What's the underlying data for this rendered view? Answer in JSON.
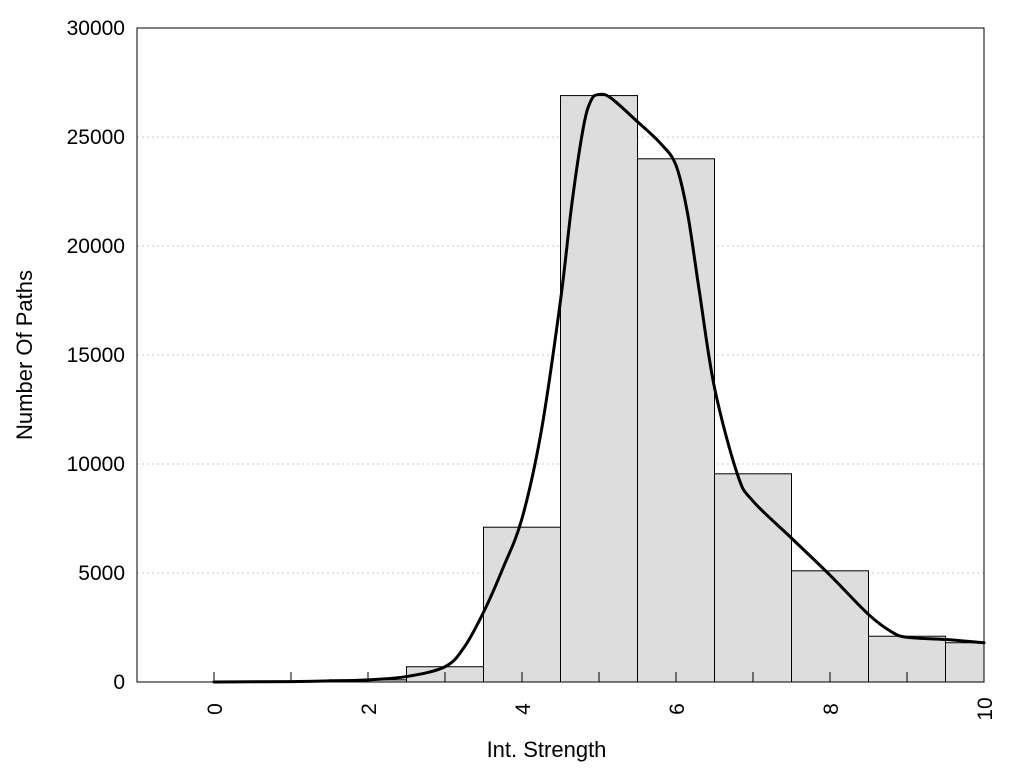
{
  "chart_data": {
    "type": "bar",
    "title": "",
    "xlabel": "Int. Strength",
    "ylabel": "Number Of Paths",
    "xlim": [
      -1,
      10
    ],
    "ylim": [
      0,
      30000
    ],
    "x_ticks": [
      0,
      2,
      4,
      6,
      8,
      10
    ],
    "y_ticks": [
      0,
      5000,
      10000,
      15000,
      20000,
      25000,
      30000
    ],
    "grid": "horizontal dotted",
    "bar_color": "#dddddd",
    "line_color": "#000000",
    "x": [
      0,
      1,
      2,
      3,
      4,
      5,
      6,
      7,
      8,
      9,
      10
    ],
    "values": [
      0,
      0,
      100,
      700,
      7100,
      26900,
      24000,
      9550,
      5100,
      2100,
      1800
    ],
    "line": {
      "x": [
        0,
        1,
        1.5,
        2,
        2.5,
        3,
        3.25,
        3.5,
        3.75,
        4,
        4.25,
        4.5,
        4.65,
        4.8,
        4.9,
        5,
        5.15,
        5.5,
        5.8,
        6,
        6.15,
        6.3,
        6.5,
        6.8,
        7,
        7.5,
        8,
        8.5,
        8.8,
        9,
        9.5,
        10
      ],
      "y": [
        0,
        20,
        50,
        100,
        250,
        700,
        1600,
        3200,
        5200,
        7500,
        11500,
        17500,
        22000,
        25500,
        26700,
        26950,
        26800,
        25700,
        24700,
        23700,
        21500,
        18000,
        13500,
        9500,
        8300,
        6600,
        4900,
        3100,
        2300,
        2050,
        1950,
        1800
      ]
    }
  }
}
